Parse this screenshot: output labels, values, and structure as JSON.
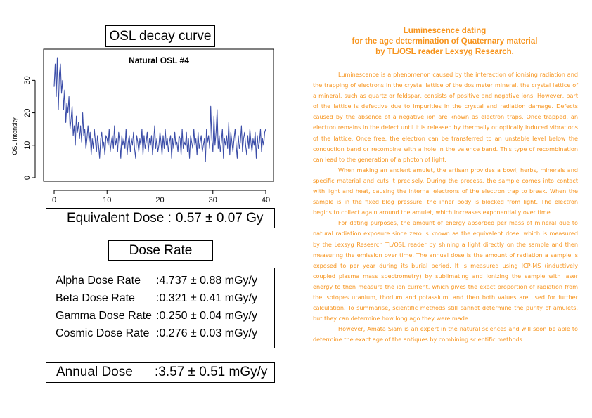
{
  "chart_data": {
    "type": "line",
    "title": "Natural OSL #4",
    "xlabel": "",
    "ylabel": "OSL intensity",
    "xlim": [
      0,
      40
    ],
    "ylim": [
      0,
      37
    ],
    "xticks": [
      0,
      10,
      20,
      30,
      40
    ],
    "yticks": [
      0,
      10,
      20,
      30
    ],
    "grid": false,
    "color": "#3b4da8",
    "series": [
      {
        "x": [
          0.0,
          0.2,
          0.4,
          0.6,
          0.8,
          1.0,
          1.2,
          1.4,
          1.6,
          1.8,
          2.0,
          2.2,
          2.4,
          2.6,
          2.8,
          3.0,
          3.2,
          3.4,
          3.6,
          3.8,
          4.0,
          4.2,
          4.4,
          4.6,
          4.8,
          5.0,
          5.2,
          5.4,
          5.6,
          5.8,
          6.0,
          6.2,
          6.4,
          6.6,
          6.8,
          7.0,
          7.2,
          7.4,
          7.6,
          7.8,
          8.0,
          8.2,
          8.4,
          8.6,
          8.8,
          9.0,
          9.2,
          9.4,
          9.6,
          9.8,
          10.0,
          10.2,
          10.4,
          10.6,
          10.8,
          11.0,
          11.2,
          11.4,
          11.6,
          11.8,
          12.0,
          12.2,
          12.4,
          12.6,
          12.8,
          13.0,
          13.2,
          13.4,
          13.6,
          13.8,
          14.0,
          14.2,
          14.4,
          14.6,
          14.8,
          15.0,
          15.2,
          15.4,
          15.6,
          15.8,
          16.0,
          16.2,
          16.4,
          16.6,
          16.8,
          17.0,
          17.2,
          17.4,
          17.6,
          17.8,
          18.0,
          18.2,
          18.4,
          18.6,
          18.8,
          19.0,
          19.2,
          19.4,
          19.6,
          19.8,
          20.0,
          20.2,
          20.4,
          20.6,
          20.8,
          21.0,
          21.2,
          21.4,
          21.6,
          21.8,
          22.0,
          22.2,
          22.4,
          22.6,
          22.8,
          23.0,
          23.2,
          23.4,
          23.6,
          23.8,
          24.0,
          24.2,
          24.4,
          24.6,
          24.8,
          25.0,
          25.2,
          25.4,
          25.6,
          25.8,
          26.0,
          26.2,
          26.4,
          26.6,
          26.8,
          27.0,
          27.2,
          27.4,
          27.6,
          27.8,
          28.0,
          28.2,
          28.4,
          28.6,
          28.8,
          29.0,
          29.2,
          29.4,
          29.6,
          29.8,
          30.0,
          30.2,
          30.4,
          30.6,
          30.8,
          31.0,
          31.2,
          31.4,
          31.6,
          31.8,
          32.0,
          32.2,
          32.4,
          32.6,
          32.8,
          33.0,
          33.2,
          33.4,
          33.6,
          33.8,
          34.0,
          34.2,
          34.4,
          34.6,
          34.8,
          35.0,
          35.2,
          35.4,
          35.6,
          35.8,
          36.0,
          36.2,
          36.4,
          36.6,
          36.8,
          37.0,
          37.2,
          37.4,
          37.6,
          37.8,
          38.0,
          38.2,
          38.4,
          38.6,
          38.8,
          39.0,
          39.2,
          39.4,
          39.6,
          39.8,
          40.0
        ],
        "y": [
          28,
          35,
          25,
          37,
          21,
          32,
          35,
          26,
          30,
          21,
          27,
          17,
          23,
          20,
          25,
          15,
          18,
          22,
          13,
          16,
          10,
          19,
          14,
          17,
          12,
          16,
          11,
          20,
          13,
          15,
          9,
          12,
          16,
          11,
          14,
          7,
          12,
          9,
          15,
          11,
          8,
          13,
          10,
          6,
          12,
          14,
          9,
          11,
          7,
          13,
          12,
          10,
          15,
          8,
          11,
          13,
          9,
          16,
          10,
          12,
          8,
          14,
          11,
          6,
          13,
          10,
          12,
          9,
          15,
          7,
          11,
          13,
          8,
          12,
          10,
          14,
          9,
          6,
          13,
          11,
          8,
          12,
          10,
          15,
          7,
          13,
          9,
          11,
          14,
          8,
          12,
          10,
          13,
          7,
          11,
          16,
          9,
          12,
          8,
          10,
          14,
          11,
          7,
          13,
          9,
          15,
          10,
          12,
          8,
          11,
          13,
          6,
          12,
          9,
          14,
          10,
          11,
          8,
          13,
          12,
          7,
          15,
          9,
          11,
          10,
          14,
          8,
          12,
          6,
          13,
          11,
          9,
          15,
          10,
          12,
          7,
          14,
          9,
          11,
          13,
          8,
          10,
          12,
          5,
          15,
          11,
          13,
          9,
          22,
          12,
          8,
          19,
          10,
          14,
          21,
          9,
          13,
          8,
          11,
          15,
          6,
          12,
          10,
          13,
          9,
          17,
          7,
          14,
          11,
          8,
          12,
          15,
          10,
          6,
          13,
          9,
          11,
          16,
          8,
          12,
          14,
          10,
          7,
          13,
          9,
          15,
          11,
          8,
          12,
          10,
          14,
          6,
          13,
          9,
          11,
          15,
          8,
          12,
          10,
          14,
          15
        ]
      }
    ]
  },
  "panels": {
    "osl_title": "OSL decay curve",
    "equivalent_dose": {
      "label": "Equivalent Dose :",
      "value": "0.57 ± 0.07 Gy"
    },
    "dose_rate_title": "Dose Rate",
    "rates": [
      {
        "label": "Alpha Dose Rate",
        "value": ":4.737 ± 0.88  mGy/y"
      },
      {
        "label": "Beta Dose Rate",
        "value": ":0.321 ± 0.41  mGy/y"
      },
      {
        "label": "Gamma Dose Rate",
        "value": ":0.250 ± 0.04  mGy/y"
      },
      {
        "label": "Cosmic Dose Rate",
        "value": ":0.276 ± 0.03  mGy/y"
      }
    ],
    "annual_dose": {
      "label": "Annual Dose",
      "value": ":3.57 ± 0.51 mGy/y"
    }
  },
  "article": {
    "title_lines": [
      "Luminescence dating",
      "for the age determination of Quaternary material",
      "by TL/OSL reader Lexsyg Research."
    ],
    "paragraphs": [
      "Luminescence is a phenomenon caused by the interaction of ionising radiation and the trapping of electrons in the crystal lattice of the dosimeter mineral. the crystal lattice of a mineral, such as quartz or feldspar, consists of positive and negative ions. However, part of the lattice is defective due to impurities in the crystal and radiation damage. Defects caused by the absence of a negative ion are known as electron traps. Once trapped, an electron remains in the defect until it is released by thermally or optically induced vibrations of the lattice. Once free, the electron can be transferred to an unstable level below the conduction band or recombine with a hole in the valence band. This type of recombination can lead to the generation of a photon of light.",
      "When making an ancient amulet, the artisan provides a bowl, herbs, minerals and specific material and cuts it precisely. During the process, the sample comes into contact with light and heat, causing the internal electrons of the electron trap to break. When the sample is in the fixed blog pressure, the inner body is blocked from light. The electron begins to collect again around the amulet, which increases exponentially over time.",
      "For dating purposes, the amount of energy absorbed per mass of mineral due to natural radiation exposure since zero is known as the equivalent dose, which is measured by the Lexsyg Research TL/OSL reader by shining a light directly on the sample and then measuring the emission over time. The annual dose is the amount of radiation a sample is exposed to per year during its burial period. It is measured using ICP-MS (inductively coupled plasma mass spectrometry) by sublimating and ionizing the sample with laser energy to then measure the ion current, which gives the exact proportion of radiation from the isotopes uranium, thorium and potassium, and then both values are used for further calculation. To summarise, scientific methods still cannot determine the purity of amulets, but they can determine how long ago they were made.",
      "However, Amata Siam is an expert in the natural sciences and will soon be able to determine the exact age of the antiques by combining scientific methods."
    ]
  }
}
